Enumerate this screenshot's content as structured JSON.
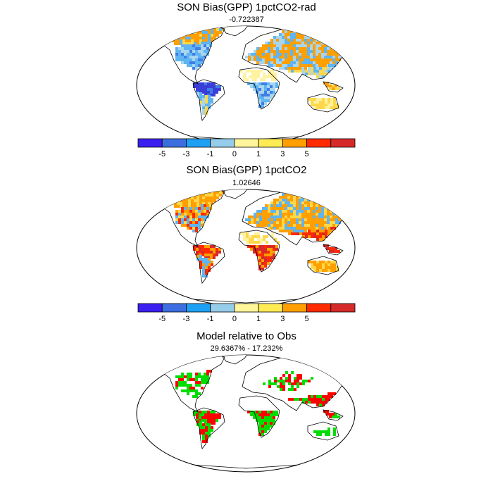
{
  "panels": [
    {
      "title": "SON Bias(GPP) 1pctCO2-rad",
      "subtitle": "-0.722387",
      "type": "bias"
    },
    {
      "title": "SON Bias(GPP) 1pctCO2",
      "subtitle": "1.02646",
      "type": "bias"
    },
    {
      "title": "Model relative to Obs",
      "subtitle": "29.6367% - 17.232%",
      "type": "relative"
    }
  ],
  "colorbar": {
    "colors": [
      "#3a1ff0",
      "#3c6ee0",
      "#1ea0f5",
      "#96cdea",
      "#fff59a",
      "#ffec55",
      "#ff9f00",
      "#ff2a00",
      "#d62a2a"
    ],
    "tick_labels": [
      "-5",
      "-3",
      "-1",
      "0",
      "1",
      "3",
      "5"
    ]
  },
  "relative_colors": {
    "model_higher": "#ff0000",
    "model_lower": "#00dd00"
  },
  "palette": {
    "deep_blue": "#3a3ed8",
    "blue": "#3f7ee6",
    "light_blue": "#5fb4f2",
    "pale_blue": "#a8d6ef",
    "pale_yellow": "#fff3a0",
    "yellow": "#ffd84a",
    "orange": "#ff9f00",
    "red": "#ff2a00",
    "dark_red": "#d62a2a"
  }
}
